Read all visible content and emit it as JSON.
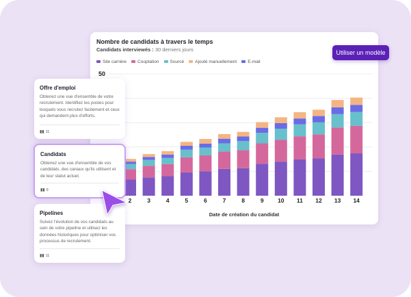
{
  "chart_card": {
    "title": "Nombre de candidats à travers le temps",
    "subtitle_label": "Candidats interviewés :",
    "subtitle_value": "30 derniers jours"
  },
  "use_template_button": "Utiliser un modèle",
  "chart_data": {
    "type": "bar",
    "stacked": true,
    "xlabel": "Date de création du candidat",
    "ylabel": "",
    "ylim": [
      0,
      50
    ],
    "yticks_visible": [
      50
    ],
    "grid": true,
    "legend": "top-left",
    "categories": [
      "2",
      "3",
      "4",
      "5",
      "6",
      "7",
      "8",
      "9",
      "10",
      "11",
      "12",
      "13",
      "14"
    ],
    "series": [
      {
        "name": "Site carrière",
        "color": "#7e57c2",
        "values": [
          6.6,
          7.5,
          8.0,
          9.6,
          10.0,
          11.0,
          11.3,
          13.1,
          14.0,
          14.9,
          15.3,
          16.9,
          17.4
        ]
      },
      {
        "name": "Cooptation",
        "color": "#d4689c",
        "values": [
          4.3,
          4.8,
          5.0,
          6.2,
          6.6,
          7.1,
          7.4,
          8.4,
          9.0,
          9.5,
          9.9,
          11.1,
          11.3
        ]
      },
      {
        "name": "Sourcé",
        "color": "#67c0cc",
        "values": [
          2.1,
          2.4,
          2.5,
          3.1,
          3.2,
          3.4,
          3.7,
          4.3,
          4.5,
          4.9,
          4.9,
          5.5,
          5.7
        ]
      },
      {
        "name": "Ajouté manuellement",
        "color": "#f4b583",
        "values": [
          1.1,
          1.2,
          1.4,
          1.6,
          1.9,
          1.9,
          1.9,
          2.3,
          2.4,
          2.6,
          2.6,
          3.0,
          3.0
        ]
      },
      {
        "name": "E-mail",
        "color": "#6a6be6",
        "values": [
          1.0,
          1.2,
          1.4,
          1.6,
          1.6,
          1.9,
          1.9,
          2.1,
          2.3,
          2.4,
          2.6,
          2.8,
          2.9
        ]
      }
    ]
  },
  "cards": [
    {
      "title": "Offre d'emploi",
      "text": "Obtenez une vue d'ensemble de votre recrutement. Identifiez les postes pour lesquels vous recrutez facilement et ceux qui demandent plus d'efforts.",
      "count": "11",
      "icon": "bar-chart-icon"
    },
    {
      "title": "Candidats",
      "text": "Obtenez une vue d'ensemble de vos candidats, des canaux qu'ils utilisent et de leur statut actuel.",
      "count": "9",
      "icon": "bar-chart-icon",
      "selected": true
    },
    {
      "title": "Pipelines",
      "text": "Suivez l'évolution de vos candidats au sein de votre pipeline et utilisez les données historiques pour optimiser vos processus de recrutement.",
      "count": "11",
      "icon": "bar-chart-icon"
    }
  ],
  "colors": {
    "background": "#ece2f6",
    "accent": "#5b21b6",
    "cursor": "#9b4de8"
  }
}
